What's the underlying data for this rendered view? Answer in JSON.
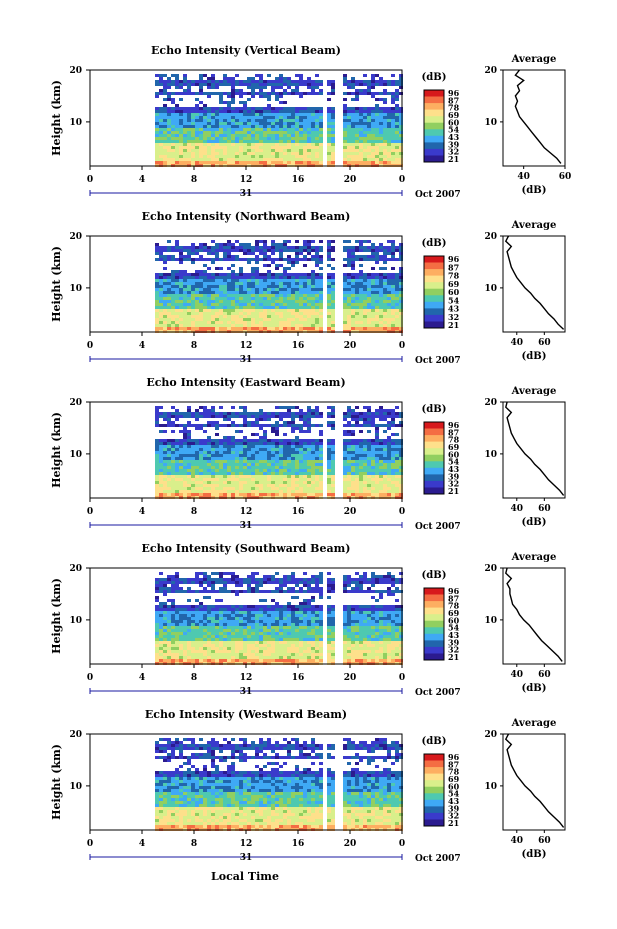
{
  "figure": {
    "xlabel_bottom": "Local Time",
    "colorbar_unit": "(dB)",
    "colorbar_ticks": [
      "96",
      "87",
      "78",
      "69",
      "60",
      "54",
      "43",
      "39",
      "32",
      "21"
    ],
    "colorbar_ticks_northward": [
      "96",
      "87",
      "78",
      "69",
      "60",
      "54",
      "43",
      "32",
      "21"
    ],
    "colorbar_colors": [
      "#d7191c",
      "#f46d43",
      "#fdae61",
      "#fee08b",
      "#d9ef8b",
      "#91cf60",
      "#4ec9b0",
      "#3fa9f5",
      "#2166ac",
      "#3a3acb",
      "#2b1b8f"
    ],
    "date_label": "Oct 2007",
    "day_label": "31",
    "average_title": "Average",
    "average_xlabel": "(dB)"
  },
  "chart_data": [
    {
      "type": "heatmap",
      "title": "Echo Intensity (Vertical Beam)",
      "ylabel": "Height (km)",
      "xlim": [
        0,
        24
      ],
      "ylim": [
        1.5,
        20
      ],
      "xticks": [
        "0",
        "4",
        "8",
        "12",
        "16",
        "20",
        "0"
      ],
      "yticks": [
        "10",
        "20"
      ],
      "data_start_hour": 5,
      "gaps_hours": [
        [
          17.8,
          18.2
        ],
        [
          18.8,
          19.2
        ]
      ],
      "average": {
        "xlim": [
          30,
          60
        ],
        "xticks": [
          "40",
          "60"
        ],
        "profile": [
          [
            58,
            2
          ],
          [
            56,
            3
          ],
          [
            53,
            4
          ],
          [
            50,
            5
          ],
          [
            48,
            6
          ],
          [
            46,
            7
          ],
          [
            44,
            8
          ],
          [
            42,
            9
          ],
          [
            40,
            10
          ],
          [
            38,
            11
          ],
          [
            37,
            12
          ],
          [
            36,
            13
          ],
          [
            37,
            14
          ],
          [
            36,
            15
          ],
          [
            38,
            16
          ],
          [
            37,
            17
          ],
          [
            40,
            18
          ],
          [
            36,
            19
          ],
          [
            38,
            20
          ]
        ]
      }
    },
    {
      "type": "heatmap",
      "title": "Echo Intensity (Northward Beam)",
      "ylabel": "Height (km)",
      "xlim": [
        0,
        24
      ],
      "ylim": [
        1.5,
        20
      ],
      "xticks": [
        "0",
        "4",
        "8",
        "12",
        "16",
        "20",
        "0"
      ],
      "yticks": [
        "10",
        "20"
      ],
      "data_start_hour": 5,
      "gaps_hours": [
        [
          17.8,
          18.2
        ],
        [
          18.8,
          19.2
        ]
      ],
      "average": {
        "xlim": [
          30,
          75
        ],
        "xticks": [
          "40",
          "60"
        ],
        "profile": [
          [
            74,
            2
          ],
          [
            70,
            3
          ],
          [
            67,
            4
          ],
          [
            63,
            5
          ],
          [
            60,
            6
          ],
          [
            57,
            7
          ],
          [
            53,
            8
          ],
          [
            50,
            9
          ],
          [
            46,
            10
          ],
          [
            43,
            11
          ],
          [
            40,
            12
          ],
          [
            38,
            13
          ],
          [
            36,
            14
          ],
          [
            35,
            15
          ],
          [
            34,
            16
          ],
          [
            33,
            17
          ],
          [
            36,
            18
          ],
          [
            32,
            19
          ],
          [
            34,
            20
          ]
        ]
      }
    },
    {
      "type": "heatmap",
      "title": "Echo Intensity (Eastward Beam)",
      "ylabel": "Height (km)",
      "xlim": [
        0,
        24
      ],
      "ylim": [
        1.5,
        20
      ],
      "xticks": [
        "0",
        "4",
        "8",
        "12",
        "16",
        "20",
        "0"
      ],
      "yticks": [
        "10",
        "20"
      ],
      "data_start_hour": 5,
      "gaps_hours": [
        [
          17.8,
          18.2
        ],
        [
          18.8,
          19.2
        ]
      ],
      "average": {
        "xlim": [
          30,
          75
        ],
        "xticks": [
          "40",
          "60"
        ],
        "profile": [
          [
            74,
            2
          ],
          [
            71,
            3
          ],
          [
            67,
            4
          ],
          [
            63,
            5
          ],
          [
            60,
            6
          ],
          [
            57,
            7
          ],
          [
            53,
            8
          ],
          [
            50,
            9
          ],
          [
            46,
            10
          ],
          [
            43,
            11
          ],
          [
            40,
            12
          ],
          [
            38,
            13
          ],
          [
            36,
            14
          ],
          [
            35,
            15
          ],
          [
            34,
            16
          ],
          [
            33,
            17
          ],
          [
            36,
            18
          ],
          [
            32,
            19
          ],
          [
            33,
            20
          ]
        ]
      }
    },
    {
      "type": "heatmap",
      "title": "Echo Intensity (Southward Beam)",
      "ylabel": "Height (km)",
      "xlim": [
        0,
        24
      ],
      "ylim": [
        1.5,
        20
      ],
      "xticks": [
        "0",
        "4",
        "8",
        "12",
        "16",
        "20",
        "0"
      ],
      "yticks": [
        "10",
        "20"
      ],
      "data_start_hour": 5,
      "gaps_hours": [
        [
          17.8,
          18.2
        ],
        [
          18.8,
          19.2
        ]
      ],
      "average": {
        "xlim": [
          30,
          75
        ],
        "xticks": [
          "40",
          "60"
        ],
        "profile": [
          [
            73,
            2
          ],
          [
            70,
            3
          ],
          [
            66,
            4
          ],
          [
            62,
            5
          ],
          [
            58,
            6
          ],
          [
            55,
            7
          ],
          [
            52,
            8
          ],
          [
            49,
            9
          ],
          [
            45,
            10
          ],
          [
            42,
            11
          ],
          [
            40,
            12
          ],
          [
            37,
            13
          ],
          [
            36,
            14
          ],
          [
            35,
            15
          ],
          [
            35,
            16
          ],
          [
            33,
            17
          ],
          [
            36,
            18
          ],
          [
            32,
            19
          ],
          [
            33,
            20
          ]
        ]
      }
    },
    {
      "type": "heatmap",
      "title": "Echo Intensity (Westward Beam)",
      "ylabel": "Height (km)",
      "xlim": [
        0,
        24
      ],
      "ylim": [
        1.5,
        20
      ],
      "xticks": [
        "0",
        "4",
        "8",
        "12",
        "16",
        "20",
        "0"
      ],
      "yticks": [
        "10",
        "20"
      ],
      "data_start_hour": 5,
      "gaps_hours": [
        [
          17.8,
          18.2
        ],
        [
          18.8,
          19.2
        ]
      ],
      "average": {
        "xlim": [
          30,
          75
        ],
        "xticks": [
          "40",
          "60"
        ],
        "profile": [
          [
            74,
            2
          ],
          [
            71,
            3
          ],
          [
            67,
            4
          ],
          [
            63,
            5
          ],
          [
            60,
            6
          ],
          [
            57,
            7
          ],
          [
            53,
            8
          ],
          [
            50,
            9
          ],
          [
            46,
            10
          ],
          [
            43,
            11
          ],
          [
            40,
            12
          ],
          [
            38,
            13
          ],
          [
            36,
            14
          ],
          [
            35,
            15
          ],
          [
            34,
            16
          ],
          [
            33,
            17
          ],
          [
            36,
            18
          ],
          [
            32,
            19
          ],
          [
            34,
            20
          ]
        ]
      }
    }
  ]
}
